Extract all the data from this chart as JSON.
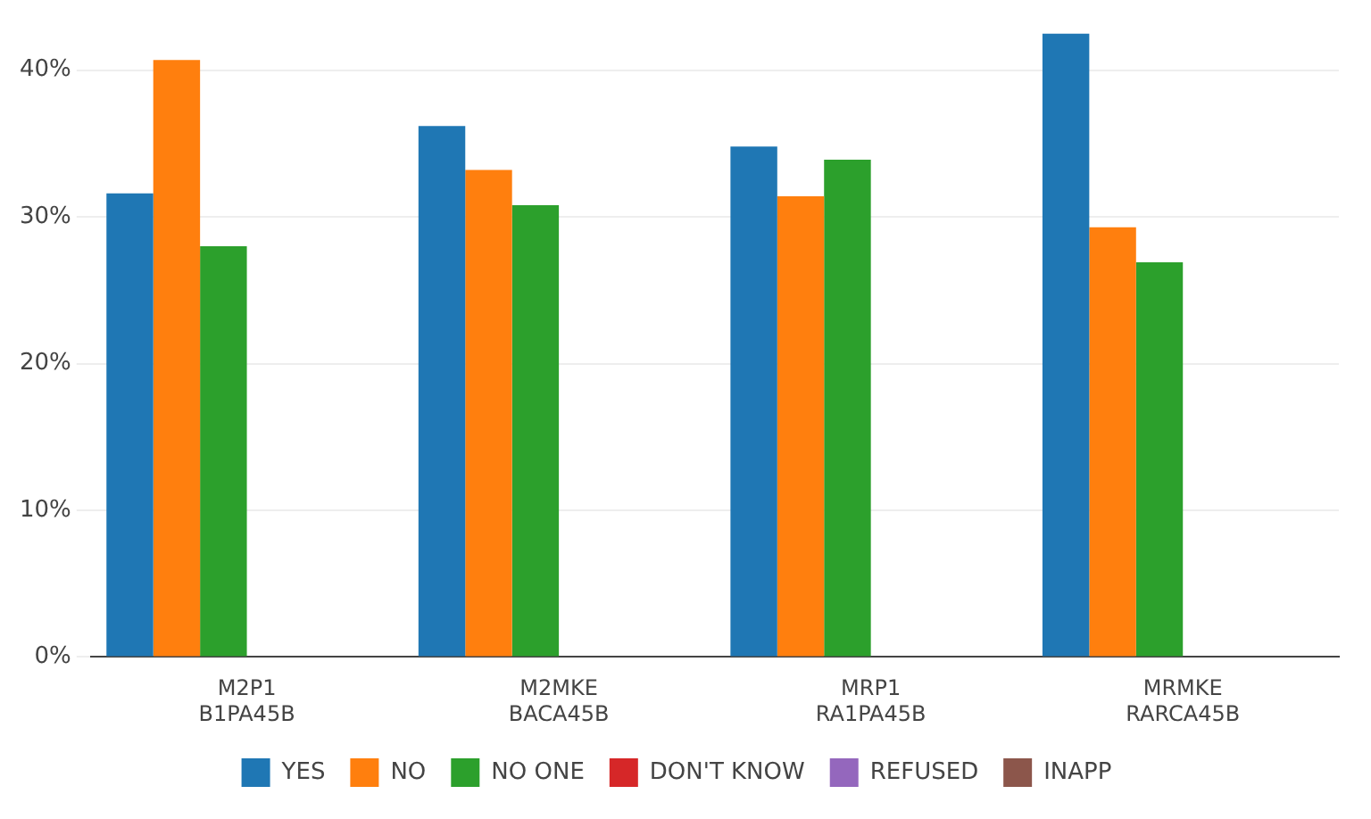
{
  "chart_data": {
    "type": "bar",
    "categories": [
      "M2P1 B1PA45B",
      "M2MKE BACA45B",
      "MRP1 RA1PA45B",
      "MRMKE RARCA45B"
    ],
    "series": [
      {
        "name": "YES",
        "color": "#1f77b4",
        "values": [
          31.6,
          36.2,
          34.8,
          42.5
        ]
      },
      {
        "name": "NO",
        "color": "#ff7f0e",
        "values": [
          40.7,
          33.2,
          31.4,
          29.3
        ]
      },
      {
        "name": "NO ONE",
        "color": "#2ca02c",
        "values": [
          28.0,
          30.8,
          33.9,
          26.9
        ]
      },
      {
        "name": "DON'T KNOW",
        "color": "#d62728",
        "values": [
          0,
          0,
          0,
          0
        ]
      },
      {
        "name": "REFUSED",
        "color": "#9467bd",
        "values": [
          0,
          0,
          0,
          0
        ]
      },
      {
        "name": "INAPP",
        "color": "#8c564b",
        "values": [
          0,
          0,
          0,
          0
        ]
      }
    ],
    "ylim": [
      0,
      42.5
    ],
    "yticks": [
      {
        "value": 0,
        "label": "0%"
      },
      {
        "value": 10,
        "label": "10%"
      },
      {
        "value": 20,
        "label": "20%"
      },
      {
        "value": 30,
        "label": "30%"
      },
      {
        "value": 40,
        "label": "40%"
      }
    ],
    "grid": "y",
    "legend": "bottom"
  }
}
